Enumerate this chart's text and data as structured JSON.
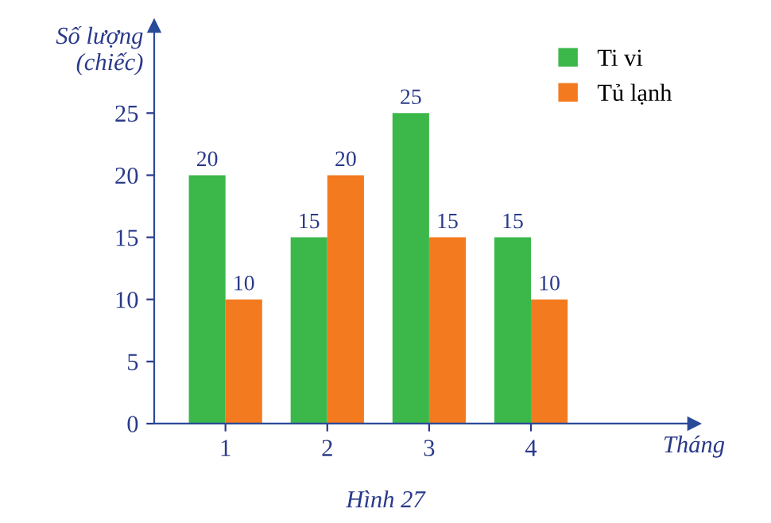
{
  "chart_data": {
    "type": "bar",
    "ylabel": "Số lượng\n(chiếc)",
    "xlabel": "Tháng",
    "categories": [
      "1",
      "2",
      "3",
      "4"
    ],
    "series": [
      {
        "name": "Ti vi",
        "color": "#3cb84a",
        "values": [
          20,
          15,
          25,
          15
        ]
      },
      {
        "name": "Tủ lạnh",
        "color": "#f47a1f",
        "values": [
          10,
          20,
          15,
          10
        ]
      }
    ],
    "ylim": [
      0,
      32
    ],
    "yticks": [
      0,
      5,
      10,
      15,
      20,
      25
    ],
    "data_labels": true,
    "legend": "top right",
    "grid": false,
    "annotations": [
      "Hình 27"
    ]
  }
}
